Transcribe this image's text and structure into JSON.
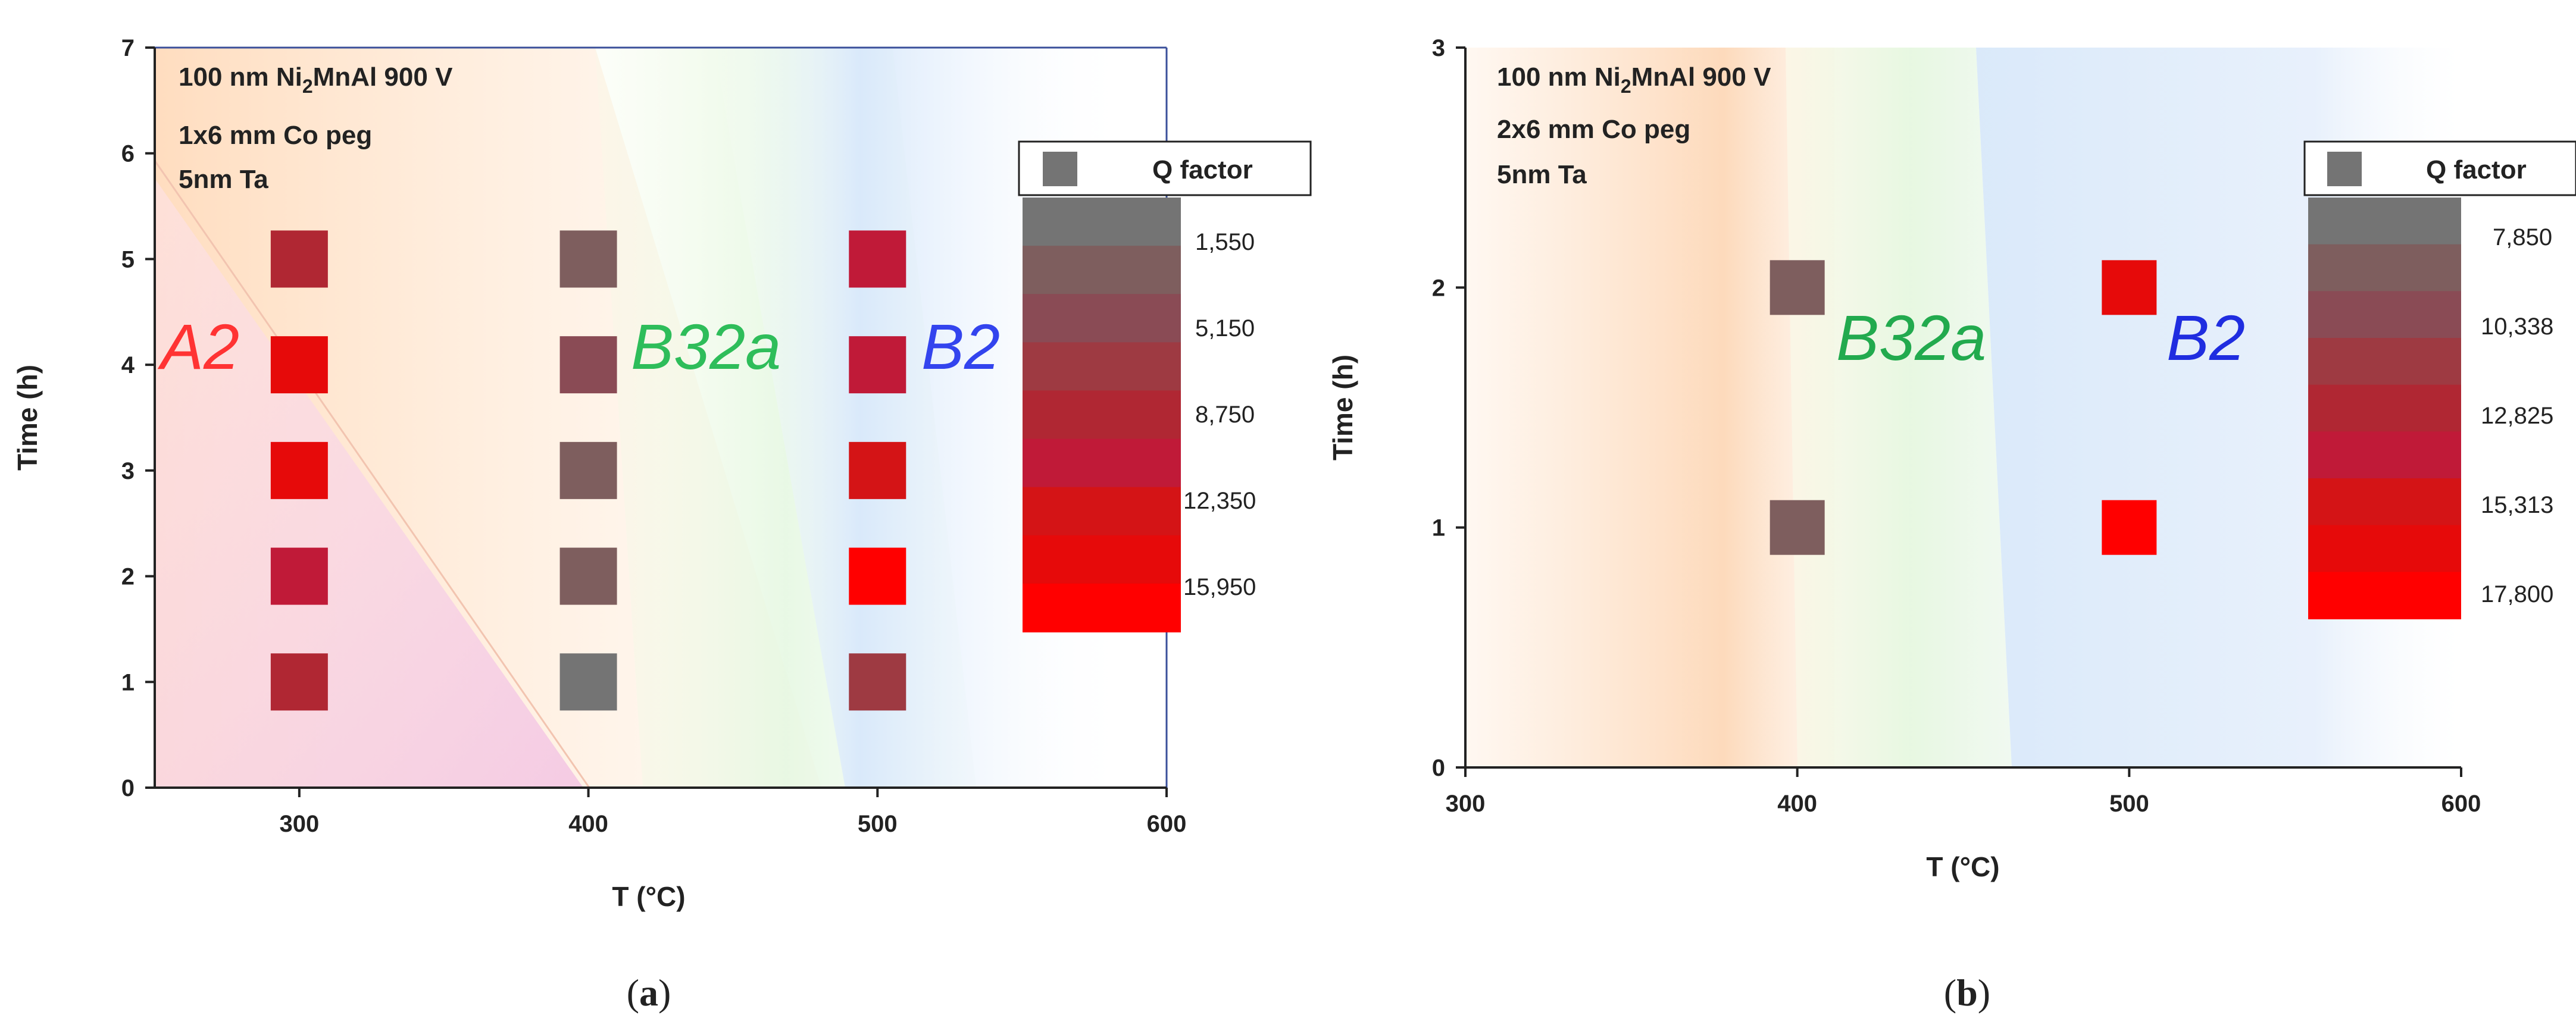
{
  "chart_data": [
    {
      "type": "scatter",
      "panel_label": "a",
      "xlabel": "T (°C)",
      "ylabel": "Time (h)",
      "xlim": [
        250,
        600
      ],
      "ylim": [
        0,
        7
      ],
      "xticks": [
        300,
        400,
        500,
        600
      ],
      "yticks": [
        0,
        1,
        2,
        3,
        4,
        5,
        6,
        7
      ],
      "annotations": [
        "100 nm Ni",
        "2",
        "MnAl 900 V",
        "1x6 mm Co peg",
        "5nm Ta"
      ],
      "regions": [
        {
          "name": "A2",
          "color": "#ff3333"
        },
        {
          "name": "B32a",
          "color": "#2ebd5a"
        },
        {
          "name": "B2",
          "color": "#3344ee"
        }
      ],
      "legend": {
        "title": "Q factor",
        "labels": [
          "1,550",
          "5,150",
          "8,750",
          "12,350",
          "15,950"
        ],
        "colors": [
          "#747474",
          "#7e5e5e",
          "#8a4b55",
          "#9e3a42",
          "#b02733",
          "#c01a38",
          "#d41416",
          "#e60a0a",
          "#ff0000"
        ]
      },
      "points": [
        {
          "x": 300,
          "y": 5,
          "color": "#b02733"
        },
        {
          "x": 300,
          "y": 4,
          "color": "#e60a0a"
        },
        {
          "x": 300,
          "y": 3,
          "color": "#e60a0a"
        },
        {
          "x": 300,
          "y": 2,
          "color": "#c01a38"
        },
        {
          "x": 300,
          "y": 1,
          "color": "#b02733"
        },
        {
          "x": 400,
          "y": 5,
          "color": "#7e5e5e"
        },
        {
          "x": 400,
          "y": 4,
          "color": "#8a4b55"
        },
        {
          "x": 400,
          "y": 3,
          "color": "#7e5e5e"
        },
        {
          "x": 400,
          "y": 2,
          "color": "#7e5e5e"
        },
        {
          "x": 400,
          "y": 1,
          "color": "#747474"
        },
        {
          "x": 500,
          "y": 5,
          "color": "#c01a38"
        },
        {
          "x": 500,
          "y": 4,
          "color": "#c01a38"
        },
        {
          "x": 500,
          "y": 3,
          "color": "#d41416"
        },
        {
          "x": 500,
          "y": 2,
          "color": "#ff0000"
        },
        {
          "x": 500,
          "y": 1,
          "color": "#9e3a42"
        }
      ]
    },
    {
      "type": "scatter",
      "panel_label": "b",
      "xlabel": "T (°C)",
      "ylabel": "Time (h)",
      "xlim": [
        300,
        600
      ],
      "ylim": [
        0,
        3
      ],
      "xticks": [
        300,
        400,
        500,
        600
      ],
      "yticks": [
        0,
        1,
        2,
        3
      ],
      "annotations": [
        "100 nm Ni",
        "2",
        "MnAl 900 V",
        "2x6 mm Co peg",
        "5nm Ta"
      ],
      "regions": [
        {
          "name": "B32a",
          "color": "#22aa4e"
        },
        {
          "name": "B2",
          "color": "#1f2de0"
        }
      ],
      "legend": {
        "title": "Q factor",
        "labels": [
          "7,850",
          "10,338",
          "12,825",
          "15,313",
          "17,800"
        ],
        "colors": [
          "#747474",
          "#7e5e5e",
          "#8a4b55",
          "#9e3a42",
          "#b02733",
          "#c01a38",
          "#d41416",
          "#e60a0a",
          "#ff0000"
        ]
      },
      "points": [
        {
          "x": 400,
          "y": 2,
          "color": "#7e5e5e"
        },
        {
          "x": 400,
          "y": 1,
          "color": "#7e5e5e"
        },
        {
          "x": 500,
          "y": 2,
          "color": "#e60a0a"
        },
        {
          "x": 500,
          "y": 1,
          "color": "#ff0000"
        }
      ]
    }
  ]
}
